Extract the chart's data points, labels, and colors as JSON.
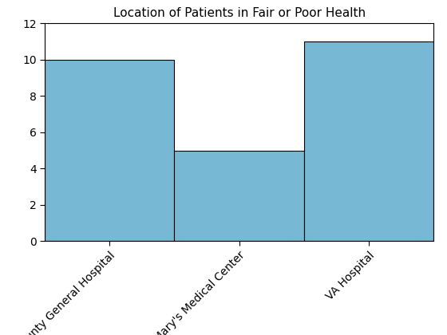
{
  "title": "Location of Patients in Fair or Poor Health",
  "categories": [
    "County General Hospital",
    "St. Mary's Medical Center",
    "VA Hospital"
  ],
  "values": [
    10,
    5,
    11
  ],
  "bar_color": "#77b9d4",
  "bar_edge_color": "#000000",
  "bar_edge_width": 0.8,
  "ylim": [
    0,
    12
  ],
  "yticks": [
    0,
    2,
    4,
    6,
    8,
    10,
    12
  ],
  "title_fontsize": 11,
  "tick_label_fontsize": 10,
  "background_color": "#ffffff",
  "bar_width": 1.0,
  "figsize": [
    5.6,
    4.2
  ],
  "dpi": 100
}
